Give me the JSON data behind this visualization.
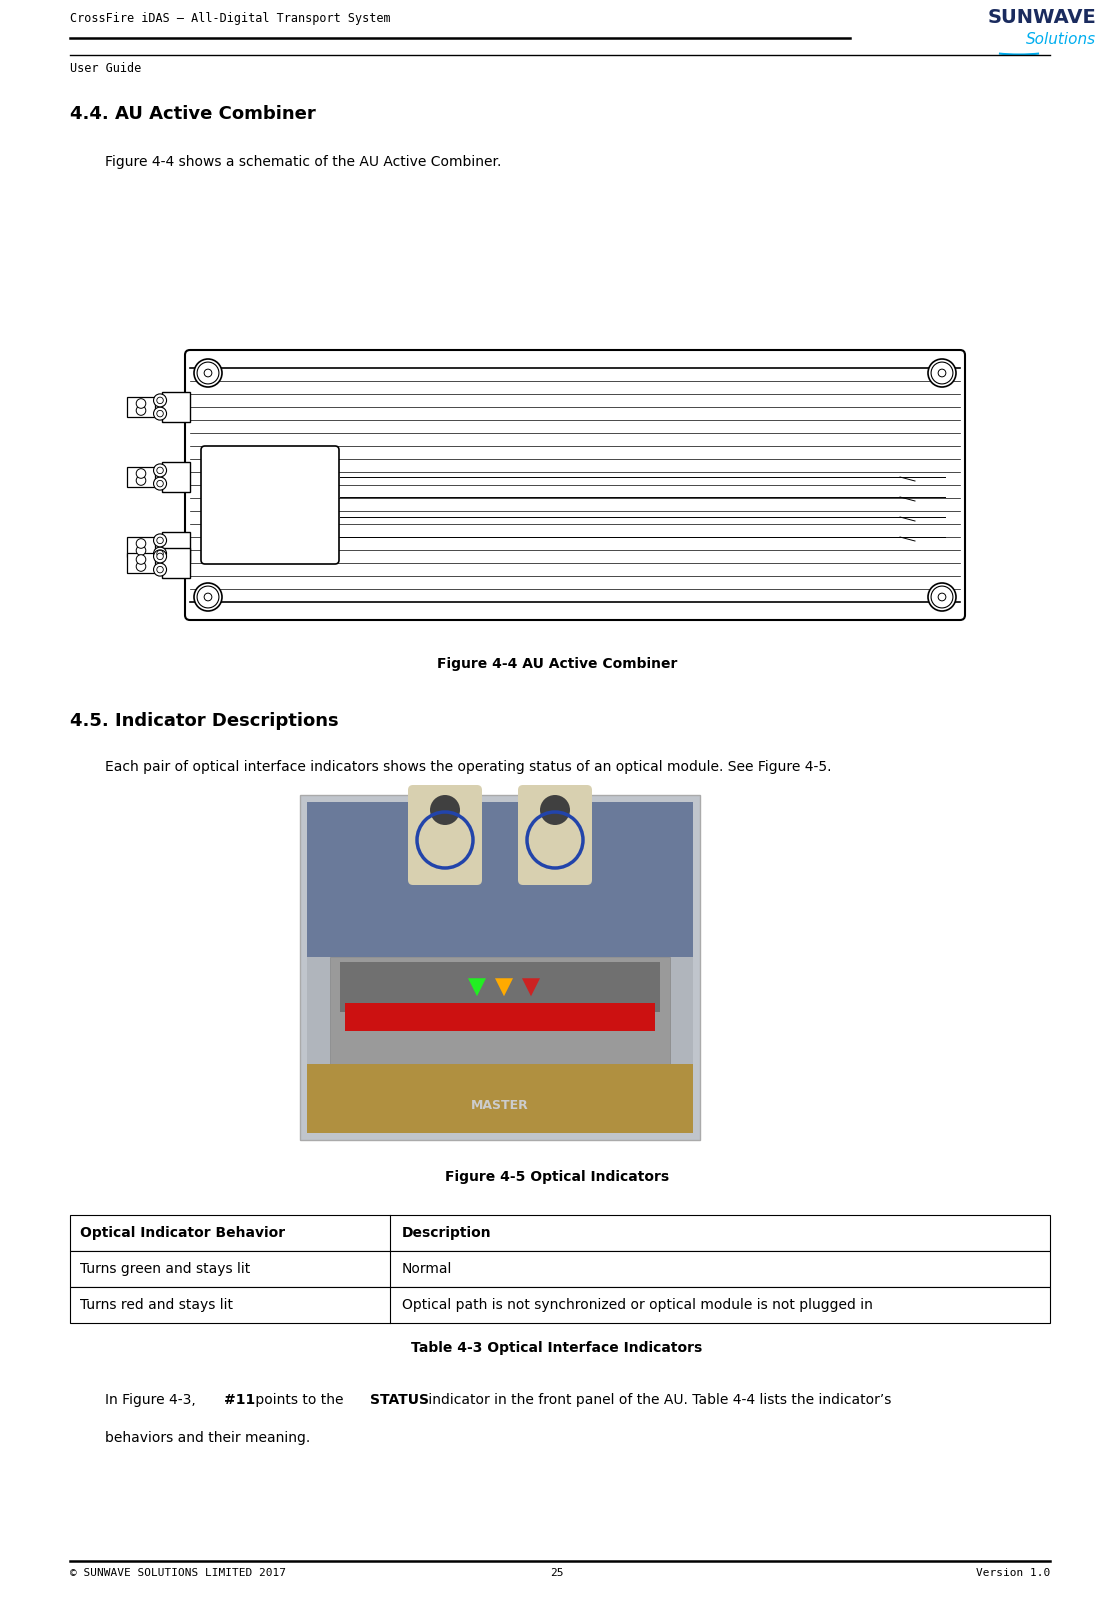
{
  "page_width": 11.14,
  "page_height": 16.23,
  "bg_color": "#ffffff",
  "header_title": "CrossFire iDAS – All-Digital Transport System",
  "header_subtitle": "User Guide",
  "footer_left": "© SUNWAVE SOLUTIONS LIMITED 2017",
  "footer_center": "25",
  "footer_right": "Version 1.0",
  "sunwave_color": "#1a2b5e",
  "solutions_color": "#00aeef",
  "section_title": "4.4. AU Active Combiner",
  "section_body": "Figure 4-4 shows a schematic of the AU Active Combiner.",
  "figure_44_caption": "Figure 4-4 AU Active Combiner",
  "section2_title": "4.5. Indicator Descriptions",
  "section2_body": "Each pair of optical interface indicators shows the operating status of an optical module. See Figure 4-5.",
  "figure_45_caption": "Figure 4-5 Optical Indicators",
  "table_header_col1": "Optical Indicator Behavior",
  "table_header_col2": "Description",
  "table_row1_col1": "Turns green and stays lit",
  "table_row1_col2": "Normal",
  "table_row2_col1": "Turns red and stays lit",
  "table_row2_col2": "Optical path is not synchronized or optical module is not plugged in",
  "table_caption": "Table 4-3 Optical Interface Indicators",
  "final_para_pre": "In Figure 4-3, ",
  "final_para_bold1": "#11",
  "final_para_mid": " points to the ",
  "final_para_bold2": "STATUS",
  "final_para_post": " indicator in the front panel of the AU. Table 4-4 lists the indicator’s",
  "final_para_line2": "behaviors and their meaning."
}
